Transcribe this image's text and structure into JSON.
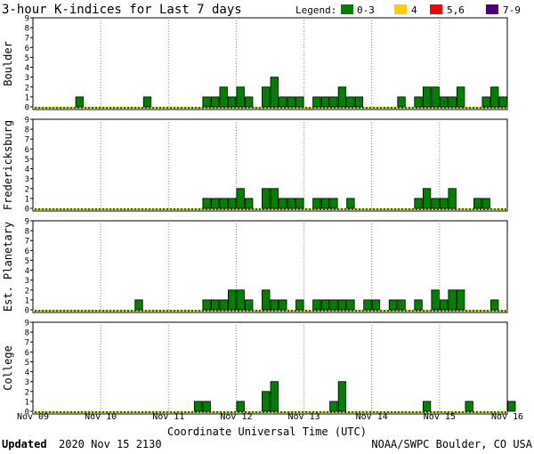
{
  "header": {
    "title": "3-hour K-indices for Last 7 days",
    "legend_label": "Legend:",
    "legend": [
      {
        "label": "0-3",
        "color": "#008000"
      },
      {
        "label": "4",
        "color": "#ffcc00"
      },
      {
        "label": "5,6",
        "color": "#ff0000"
      },
      {
        "label": "7-9",
        "color": "#4b0082"
      }
    ]
  },
  "footer": {
    "updated_label": "Updated",
    "updated_value": "2020 Nov 15 2130",
    "source": "NOAA/SWPC Boulder, CO USA"
  },
  "chart_data": {
    "type": "bar",
    "xlabel": "Coordinate Universal Time (UTC)",
    "x_ticks": [
      "Nov 09",
      "Nov 10",
      "Nov 11",
      "Nov 12",
      "Nov 13",
      "Nov 14",
      "Nov 15",
      "Nov 16"
    ],
    "y_ticks": [
      "0",
      "1",
      "2",
      "3",
      "4",
      "5",
      "6",
      "7",
      "8",
      "9"
    ],
    "ylim": [
      0,
      9
    ],
    "intervals_per_day": 8,
    "bar_color": "#008000",
    "grid": true,
    "panels": [
      {
        "name": "Boulder",
        "values": [
          0,
          0,
          0,
          0,
          0,
          1,
          0,
          0,
          0,
          0,
          0,
          0,
          0,
          1,
          0,
          0,
          0,
          0,
          0,
          0,
          1,
          1,
          2,
          1,
          2,
          1,
          0,
          2,
          3,
          1,
          1,
          1,
          0,
          1,
          1,
          1,
          2,
          1,
          1,
          0,
          0,
          0,
          0,
          1,
          0,
          1,
          2,
          2,
          1,
          1,
          2,
          0,
          0,
          1,
          2,
          1,
          0
        ]
      },
      {
        "name": "Fredericksburg",
        "values": [
          0,
          0,
          0,
          0,
          0,
          0,
          0,
          0,
          0,
          0,
          0,
          0,
          0,
          0,
          0,
          0,
          0,
          0,
          0,
          0,
          1,
          1,
          1,
          1,
          2,
          1,
          0,
          2,
          2,
          1,
          1,
          1,
          0,
          1,
          1,
          1,
          0,
          1,
          0,
          0,
          0,
          0,
          0,
          0,
          0,
          1,
          2,
          1,
          1,
          2,
          0,
          0,
          1,
          1,
          0,
          0,
          0
        ]
      },
      {
        "name": "Est. Planetary",
        "values": [
          0,
          0,
          0,
          0,
          0,
          0,
          0,
          0,
          0,
          0,
          0,
          0,
          1,
          0,
          0,
          0,
          0,
          0,
          0,
          0,
          1,
          1,
          1,
          2,
          2,
          1,
          0,
          2,
          1,
          1,
          0,
          1,
          0,
          1,
          1,
          1,
          1,
          1,
          0,
          1,
          1,
          0,
          1,
          1,
          0,
          1,
          0,
          2,
          1,
          2,
          2,
          0,
          0,
          0,
          1,
          0,
          0
        ]
      },
      {
        "name": "College",
        "values": [
          0,
          0,
          0,
          0,
          0,
          0,
          0,
          0,
          0,
          0,
          0,
          0,
          0,
          0,
          0,
          0,
          0,
          0,
          0,
          1,
          1,
          0,
          0,
          0,
          1,
          0,
          0,
          2,
          3,
          0,
          0,
          0,
          0,
          0,
          0,
          1,
          3,
          0,
          0,
          0,
          0,
          0,
          0,
          0,
          0,
          0,
          1,
          0,
          0,
          0,
          0,
          1,
          0,
          0,
          0,
          0,
          1,
          0
        ]
      }
    ]
  }
}
